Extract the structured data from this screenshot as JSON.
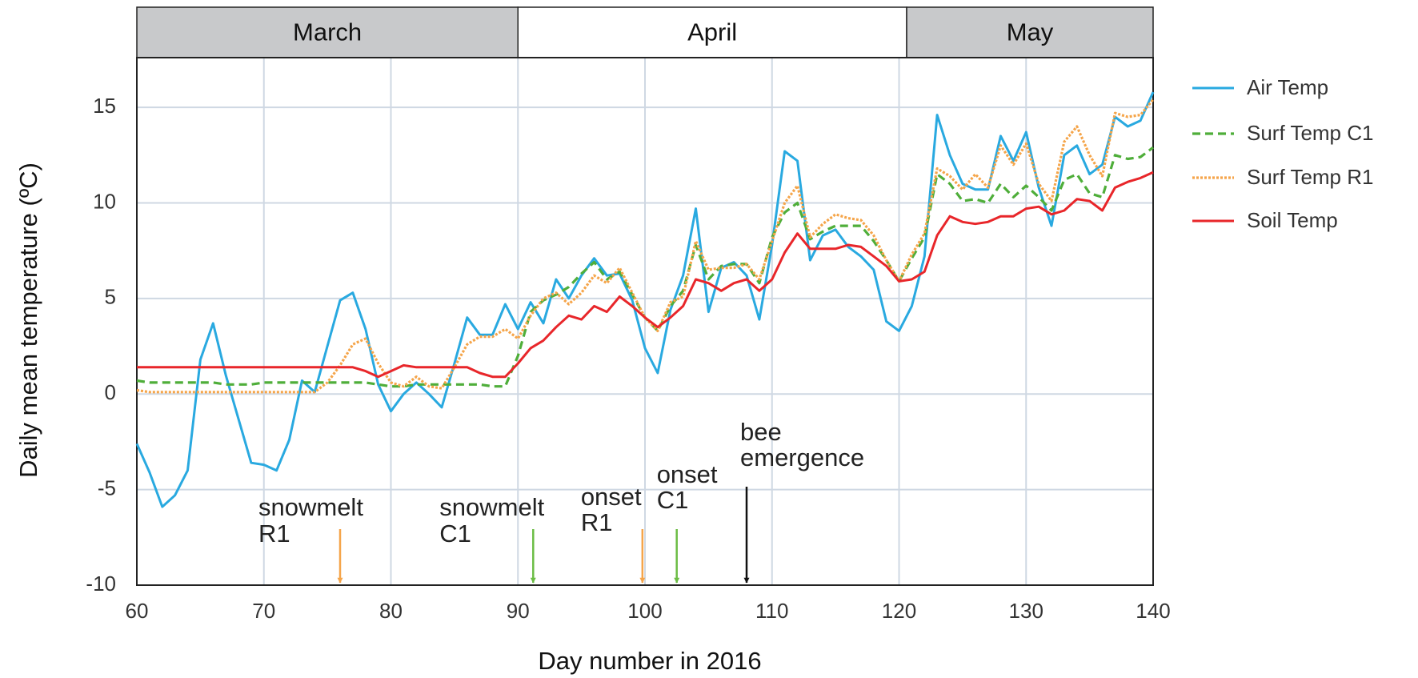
{
  "chart_data": {
    "type": "line",
    "xlabel": "Day number in 2016",
    "ylabel": "Daily mean temperature (ºC)",
    "xlim": [
      60,
      140
    ],
    "xticks": [
      60,
      70,
      80,
      90,
      100,
      110,
      120,
      130,
      140
    ],
    "ylim": [
      -10,
      17.6
    ],
    "yticks": [
      -10,
      -5,
      0,
      5,
      10,
      15
    ],
    "grid": true,
    "legend": "right",
    "months": [
      {
        "label": "March",
        "start": 60,
        "end": 90,
        "color": "#c8c9cb"
      },
      {
        "label": "April",
        "start": 90,
        "end": 120.6,
        "color": "#ffffff"
      },
      {
        "label": "May",
        "start": 120.6,
        "end": 140,
        "color": "#c8c9cb"
      }
    ],
    "x": [
      60,
      61,
      62,
      63,
      64,
      65,
      66,
      67,
      68,
      69,
      70,
      71,
      72,
      73,
      74,
      75,
      76,
      77,
      78,
      79,
      80,
      81,
      82,
      83,
      84,
      85,
      86,
      87,
      88,
      89,
      90,
      91,
      92,
      93,
      94,
      95,
      96,
      97,
      98,
      99,
      100,
      101,
      102,
      103,
      104,
      105,
      106,
      107,
      108,
      109,
      110,
      111,
      112,
      113,
      114,
      115,
      116,
      117,
      118,
      119,
      120,
      121,
      122,
      123,
      124,
      125,
      126,
      127,
      128,
      129,
      130,
      131,
      132,
      133,
      134,
      135,
      136,
      137,
      138,
      139,
      140
    ],
    "series": [
      {
        "name": "Air Temp",
        "color": "#29a9e0",
        "line_style": "solid",
        "values": [
          -2.6,
          -4.1,
          -5.9,
          -5.3,
          -4.0,
          1.8,
          3.7,
          1.0,
          -1.3,
          -3.6,
          -3.7,
          -4.0,
          -2.4,
          0.7,
          0.1,
          2.5,
          4.9,
          5.3,
          3.4,
          0.5,
          -0.9,
          0,
          0.6,
          0,
          -0.7,
          1.6,
          4.0,
          3.1,
          3.1,
          4.7,
          3.4,
          4.8,
          3.7,
          6.0,
          5.0,
          6.2,
          7.1,
          6.2,
          6.3,
          4.9,
          2.4,
          1.1,
          4.4,
          6.2,
          9.7,
          4.3,
          6.6,
          6.9,
          6.2,
          3.9,
          7.8,
          12.7,
          12.2,
          7.0,
          8.3,
          8.6,
          7.7,
          7.2,
          6.5,
          3.8,
          3.3,
          4.6,
          7.2,
          14.6,
          12.5,
          11.0,
          10.7,
          10.7,
          13.5,
          12.2,
          13.7,
          10.8,
          8.8,
          12.5,
          13.0,
          11.5,
          12.0,
          14.5,
          14.0,
          14.3,
          15.8
        ]
      },
      {
        "name": "Surf Temp C1",
        "color": "#4fae3a",
        "line_style": "dashed",
        "values": [
          0.7,
          0.6,
          0.6,
          0.6,
          0.6,
          0.6,
          0.6,
          0.5,
          0.5,
          0.5,
          0.6,
          0.6,
          0.6,
          0.6,
          0.6,
          0.6,
          0.6,
          0.6,
          0.6,
          0.5,
          0.4,
          0.4,
          0.5,
          0.5,
          0.5,
          0.5,
          0.5,
          0.5,
          0.4,
          0.4,
          2.0,
          4.3,
          4.9,
          5.2,
          5.6,
          6.3,
          6.9,
          6.0,
          6.4,
          5.2,
          4.0,
          3.3,
          4.6,
          5.4,
          7.8,
          6.0,
          6.7,
          6.8,
          6.8,
          5.8,
          8.2,
          9.5,
          10.0,
          8.1,
          8.5,
          8.8,
          8.8,
          8.8,
          8.0,
          7.0,
          5.9,
          7.1,
          8.2,
          11.5,
          11.0,
          10.1,
          10.2,
          10.0,
          11.0,
          10.3,
          10.9,
          10.3,
          9.6,
          11.2,
          11.5,
          10.5,
          10.3,
          12.5,
          12.3,
          12.4,
          12.9
        ]
      },
      {
        "name": "Surf Temp R1",
        "color": "#f5a54a",
        "line_style": "dotted",
        "values": [
          0.2,
          0.1,
          0.1,
          0.1,
          0.1,
          0.1,
          0.1,
          0.1,
          0.1,
          0.1,
          0.1,
          0.1,
          0.1,
          0.1,
          0.1,
          0.6,
          1.5,
          2.6,
          2.9,
          1.6,
          0.6,
          0.4,
          0.9,
          0.4,
          0.3,
          1.4,
          2.6,
          3.0,
          3.0,
          3.4,
          2.9,
          4.1,
          5.0,
          5.3,
          4.7,
          5.3,
          6.2,
          5.8,
          6.6,
          5.3,
          4.0,
          3.3,
          4.8,
          5.1,
          8.0,
          6.5,
          6.6,
          6.6,
          6.8,
          6.0,
          8.0,
          10.0,
          10.9,
          8.2,
          8.9,
          9.4,
          9.2,
          9.1,
          8.3,
          7.0,
          5.9,
          7.3,
          8.4,
          11.8,
          11.4,
          10.7,
          11.5,
          10.8,
          13.0,
          12.0,
          13.1,
          11.0,
          10.1,
          13.2,
          14.0,
          12.5,
          11.4,
          14.7,
          14.5,
          14.6,
          15.4
        ]
      },
      {
        "name": "Soil Temp",
        "color": "#e8262a",
        "line_style": "solid",
        "values": [
          1.4,
          1.4,
          1.4,
          1.4,
          1.4,
          1.4,
          1.4,
          1.4,
          1.4,
          1.4,
          1.4,
          1.4,
          1.4,
          1.4,
          1.4,
          1.4,
          1.4,
          1.4,
          1.2,
          0.9,
          1.2,
          1.5,
          1.4,
          1.4,
          1.4,
          1.4,
          1.4,
          1.1,
          0.9,
          0.9,
          1.6,
          2.4,
          2.8,
          3.5,
          4.1,
          3.9,
          4.6,
          4.3,
          5.1,
          4.6,
          4.0,
          3.5,
          4.0,
          4.6,
          6.0,
          5.8,
          5.4,
          5.8,
          6.0,
          5.4,
          6.0,
          7.4,
          8.4,
          7.6,
          7.6,
          7.6,
          7.8,
          7.7,
          7.2,
          6.7,
          5.9,
          6.0,
          6.4,
          8.3,
          9.3,
          9.0,
          8.9,
          9.0,
          9.3,
          9.3,
          9.7,
          9.8,
          9.4,
          9.6,
          10.2,
          10.1,
          9.6,
          10.8,
          11.1,
          11.3,
          11.6
        ]
      }
    ],
    "annotations": [
      {
        "text": [
          "snowmelt",
          "R1"
        ],
        "x": 76,
        "color": "#f5a54a"
      },
      {
        "text": [
          "snowmelt",
          "C1"
        ],
        "x": 91.2,
        "color": "#6cbd45"
      },
      {
        "text": [
          "onset",
          "R1"
        ],
        "x": 99.8,
        "color": "#f5a54a"
      },
      {
        "text": [
          "onset",
          "C1"
        ],
        "x": 102.5,
        "color": "#6cbd45"
      },
      {
        "text": [
          "bee",
          "emergence"
        ],
        "x": 108,
        "color": "#111111"
      }
    ]
  }
}
